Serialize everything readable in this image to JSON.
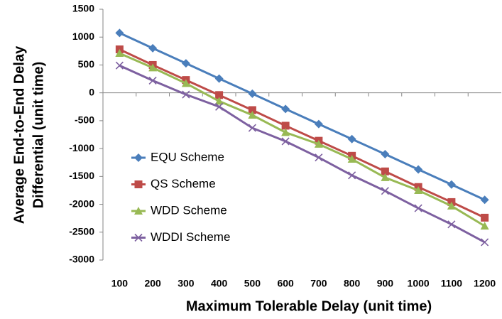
{
  "chart_data": {
    "type": "line",
    "ylabel": [
      "Average End-to-End Delay",
      "Differential (unit time)"
    ],
    "xlabel": "Maximum Tolerable Delay (unit time)",
    "categories": [
      "100",
      "200",
      "300",
      "400",
      "500",
      "600",
      "700",
      "800",
      "900",
      "1000",
      "1100",
      "1200"
    ],
    "series": [
      {
        "name": "EQU Scheme",
        "color": "#4a7ebb",
        "marker": "diamond",
        "values": [
          1075,
          800,
          530,
          255,
          -15,
          -290,
          -560,
          -830,
          -1100,
          -1375,
          -1645,
          -1920
        ]
      },
      {
        "name": "QS Scheme",
        "color": "#be4b48",
        "marker": "square",
        "values": [
          780,
          500,
          230,
          -40,
          -310,
          -590,
          -860,
          -1130,
          -1410,
          -1690,
          -1960,
          -2240
        ]
      },
      {
        "name": "WDD Scheme",
        "color": "#98b954",
        "marker": "triangle",
        "values": [
          710,
          450,
          170,
          -150,
          -400,
          -710,
          -920,
          -1190,
          -1520,
          -1750,
          -2030,
          -2390
        ]
      },
      {
        "name": "WDDI Scheme",
        "color": "#7d60a0",
        "marker": "x",
        "values": [
          490,
          220,
          -30,
          -250,
          -630,
          -870,
          -1160,
          -1480,
          -1760,
          -2070,
          -2360,
          -2680
        ]
      }
    ],
    "ylim": [
      -3000,
      1500
    ],
    "yticks": [
      -3000,
      -2500,
      -2000,
      -1500,
      -1000,
      -500,
      0,
      500,
      1000,
      1500
    ],
    "grid": false,
    "legend": "left"
  }
}
